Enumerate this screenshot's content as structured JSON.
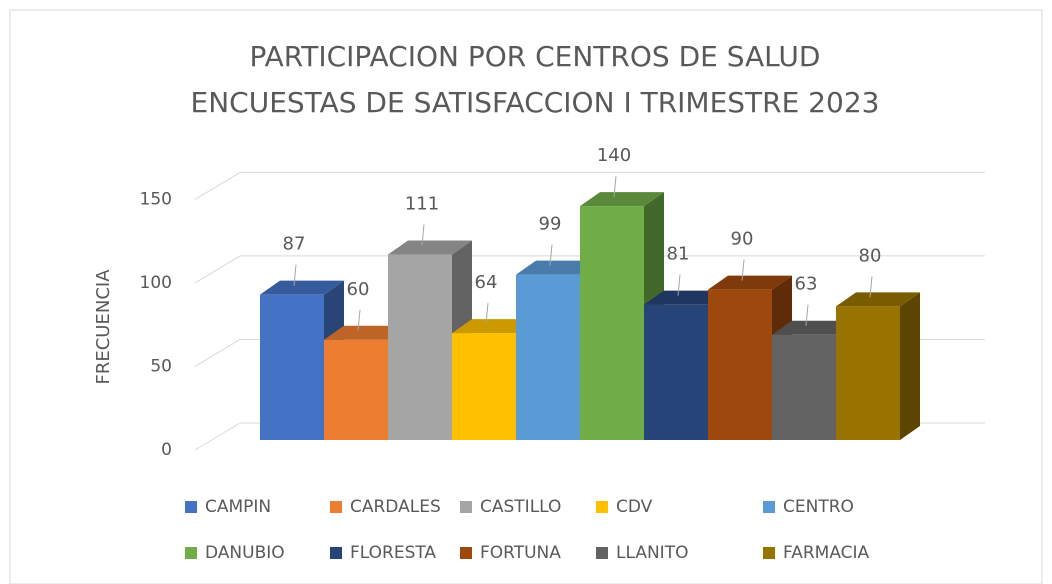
{
  "chart_data": {
    "type": "bar3d",
    "title": "PARTICIPACION POR CENTROS DE SALUD",
    "subtitle": "ENCUESTAS DE SATISFACCION I TRIMESTRE 2023",
    "y_label": "FRECUENCIA",
    "ylim": [
      0,
      150
    ],
    "yticks": [
      0,
      50,
      100,
      150
    ],
    "grid": true,
    "series": [
      {
        "name": "CAMPIN",
        "color": "#4472c4",
        "values": [
          87
        ]
      },
      {
        "name": "CARDALES",
        "color": "#ed7d31",
        "values": [
          60
        ]
      },
      {
        "name": "CASTILLO",
        "color": "#a5a5a5",
        "values": [
          111
        ]
      },
      {
        "name": "CDV",
        "color": "#ffc000",
        "values": [
          64
        ]
      },
      {
        "name": "CENTRO",
        "color": "#5b9bd5",
        "values": [
          99
        ]
      },
      {
        "name": "DANUBIO",
        "color": "#70ad47",
        "values": [
          140
        ]
      },
      {
        "name": "FLORESTA",
        "color": "#264478",
        "values": [
          81
        ]
      },
      {
        "name": "FORTUNA",
        "color": "#9e480e",
        "values": [
          90
        ]
      },
      {
        "name": "LLANITO",
        "color": "#636363",
        "values": [
          63
        ]
      },
      {
        "name": "FARMACIA",
        "color": "#997300",
        "values": [
          80
        ]
      }
    ]
  }
}
